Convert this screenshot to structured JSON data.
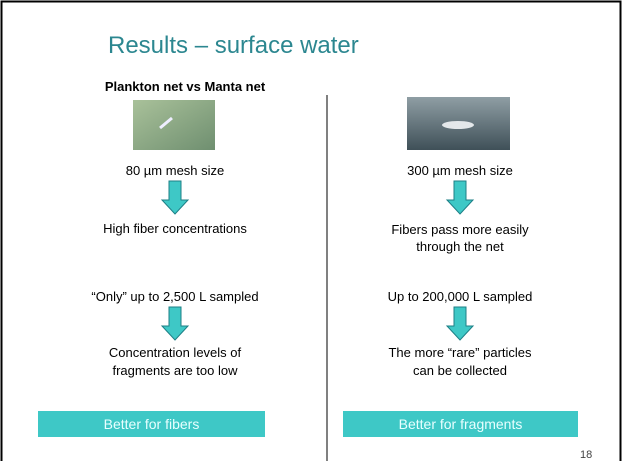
{
  "header": {
    "title": "Results – surface water",
    "subtitle": "Plankton net vs Manta net"
  },
  "left": {
    "mesh": "80 µm  mesh size",
    "result": [
      "High fiber concentrations"
    ],
    "sample": "“Only” up to 2,500 L sampled",
    "outcome": [
      "Concentration levels of",
      "fragments are too low"
    ],
    "button": "Better for fibers"
  },
  "right": {
    "mesh": "300 µm mesh size",
    "result": [
      "Fibers pass more easily",
      "through the net"
    ],
    "sample": "Up to 200,000 L sampled",
    "outcome": [
      "The more “rare” particles",
      "can be collected"
    ],
    "button": "Better for fragments"
  },
  "footer": {
    "page_number": "18"
  }
}
